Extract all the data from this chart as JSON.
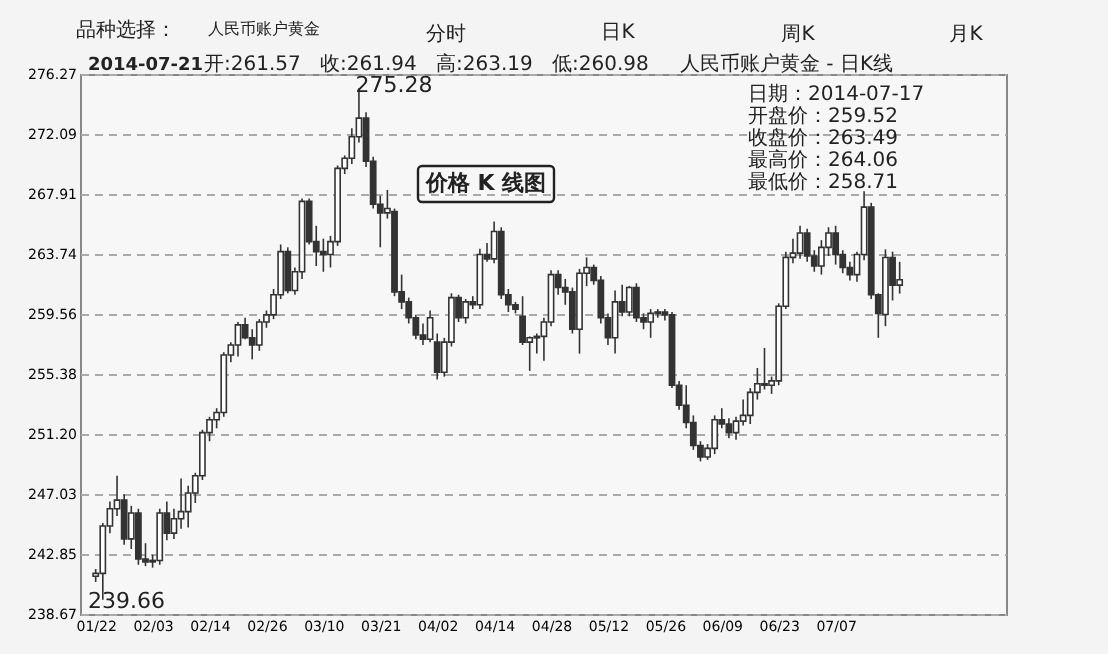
{
  "chart_data": {
    "type": "candlestick",
    "title": "人民币账户黄金 - 日K线",
    "categories": [
      "01/22",
      null,
      null,
      null,
      null,
      null,
      null,
      null,
      "02/03",
      null,
      null,
      null,
      null,
      null,
      null,
      null,
      "02/14",
      null,
      null,
      null,
      null,
      null,
      null,
      null,
      "02/26",
      null,
      null,
      null,
      null,
      null,
      null,
      null,
      "03/10",
      null,
      null,
      null,
      null,
      null,
      null,
      null,
      "03/21",
      null,
      null,
      null,
      null,
      null,
      null,
      null,
      "04/02",
      null,
      null,
      null,
      null,
      null,
      null,
      null,
      "04/14",
      null,
      null,
      null,
      null,
      null,
      null,
      null,
      "04/28",
      null,
      null,
      null,
      null,
      null,
      null,
      null,
      "05/12",
      null,
      null,
      null,
      null,
      null,
      null,
      null,
      "05/26",
      null,
      null,
      null,
      null,
      null,
      null,
      null,
      "06/09",
      null,
      null,
      null,
      null,
      null,
      null,
      null,
      "06/23",
      null,
      null,
      null,
      null,
      null,
      null,
      null,
      "07/07",
      null,
      null,
      null,
      null,
      null,
      null,
      null,
      null,
      null
    ],
    "series": [
      {
        "color": "#333333",
        "ohlc": [
          [
            241.3,
            241.8,
            240.9,
            241.5
          ],
          [
            241.5,
            245.0,
            239.66,
            244.8
          ],
          [
            244.8,
            246.5,
            244.3,
            246.0
          ],
          [
            246.0,
            248.3,
            245.5,
            246.6
          ],
          [
            246.6,
            247.0,
            243.5,
            243.9
          ],
          [
            243.9,
            246.2,
            243.2,
            245.7
          ],
          [
            245.7,
            246.0,
            242.1,
            242.5
          ],
          [
            242.5,
            243.6,
            242.0,
            242.3
          ],
          [
            242.3,
            242.8,
            241.9,
            242.4
          ],
          [
            242.4,
            246.0,
            242.1,
            245.7
          ],
          [
            245.7,
            246.5,
            243.8,
            244.3
          ],
          [
            244.3,
            246.0,
            243.9,
            245.3
          ],
          [
            245.3,
            248.1,
            244.6,
            245.8
          ],
          [
            245.8,
            247.6,
            244.7,
            247.1
          ],
          [
            247.1,
            248.5,
            246.4,
            248.3
          ],
          [
            248.3,
            251.5,
            248.0,
            251.3
          ],
          [
            251.3,
            252.4,
            250.7,
            252.2
          ],
          [
            252.2,
            253.0,
            251.6,
            252.7
          ],
          [
            252.7,
            256.9,
            252.4,
            256.7
          ],
          [
            256.7,
            257.6,
            256.2,
            257.4
          ],
          [
            257.4,
            259.0,
            256.6,
            258.8
          ],
          [
            258.8,
            259.3,
            257.8,
            257.9
          ],
          [
            257.9,
            258.5,
            256.4,
            257.4
          ],
          [
            257.4,
            259.2,
            257.0,
            259.0
          ],
          [
            259.0,
            259.8,
            258.6,
            259.5
          ],
          [
            259.5,
            261.3,
            259.2,
            260.9
          ],
          [
            260.9,
            264.4,
            260.6,
            263.9
          ],
          [
            263.9,
            264.2,
            261.0,
            261.2
          ],
          [
            261.2,
            262.8,
            260.9,
            262.5
          ],
          [
            262.5,
            267.6,
            262.0,
            267.4
          ],
          [
            267.4,
            267.6,
            264.4,
            264.6
          ],
          [
            264.6,
            265.7,
            262.9,
            263.9
          ],
          [
            263.9,
            264.8,
            262.5,
            263.7
          ],
          [
            263.7,
            265.0,
            262.8,
            264.6
          ],
          [
            264.6,
            269.9,
            264.3,
            269.7
          ],
          [
            269.7,
            270.6,
            269.3,
            270.4
          ],
          [
            270.4,
            272.5,
            270.0,
            271.9
          ],
          [
            271.9,
            275.28,
            271.5,
            273.2
          ],
          [
            273.2,
            273.6,
            269.8,
            270.2
          ],
          [
            270.2,
            270.5,
            266.9,
            267.2
          ],
          [
            267.2,
            267.8,
            264.2,
            266.6
          ],
          [
            266.6,
            268.2,
            266.2,
            266.9
          ],
          [
            266.7,
            266.9,
            260.8,
            261.1
          ],
          [
            261.1,
            262.3,
            259.9,
            260.4
          ],
          [
            260.4,
            260.7,
            258.9,
            259.3
          ],
          [
            259.3,
            259.5,
            257.8,
            258.1
          ],
          [
            258.1,
            258.9,
            257.4,
            257.8
          ],
          [
            257.8,
            259.8,
            257.6,
            259.3
          ],
          [
            257.6,
            258.2,
            255.0,
            255.5
          ],
          [
            255.5,
            257.9,
            255.2,
            257.6
          ],
          [
            257.6,
            261.0,
            257.3,
            260.7
          ],
          [
            260.7,
            260.9,
            259.0,
            259.3
          ],
          [
            259.3,
            260.6,
            258.9,
            260.4
          ],
          [
            260.4,
            260.8,
            259.9,
            260.2
          ],
          [
            260.2,
            264.1,
            259.9,
            263.7
          ],
          [
            263.7,
            264.5,
            263.2,
            263.4
          ],
          [
            263.4,
            266.0,
            263.1,
            265.3
          ],
          [
            265.3,
            265.6,
            260.6,
            260.9
          ],
          [
            260.9,
            261.3,
            259.7,
            260.2
          ],
          [
            260.2,
            260.4,
            259.6,
            259.9
          ],
          [
            259.4,
            260.8,
            257.4,
            257.6
          ],
          [
            257.6,
            258.0,
            255.6,
            257.9
          ],
          [
            257.9,
            258.2,
            256.8,
            258.0
          ],
          [
            258.0,
            259.3,
            256.3,
            259.0
          ],
          [
            259.0,
            262.6,
            258.7,
            262.3
          ],
          [
            262.3,
            262.6,
            260.9,
            261.4
          ],
          [
            261.4,
            262.0,
            260.2,
            261.1
          ],
          [
            261.1,
            261.4,
            258.2,
            258.5
          ],
          [
            258.5,
            262.7,
            256.8,
            262.4
          ],
          [
            262.4,
            263.5,
            261.5,
            262.8
          ],
          [
            262.8,
            263.0,
            261.6,
            261.9
          ],
          [
            261.9,
            262.2,
            258.9,
            259.3
          ],
          [
            259.3,
            259.6,
            257.4,
            257.9
          ],
          [
            257.9,
            261.2,
            256.8,
            260.4
          ],
          [
            260.4,
            261.6,
            259.4,
            259.7
          ],
          [
            259.7,
            261.5,
            259.4,
            261.4
          ],
          [
            261.4,
            261.7,
            259.0,
            259.3
          ],
          [
            259.3,
            259.6,
            258.5,
            259.0
          ],
          [
            259.0,
            259.9,
            257.9,
            259.6
          ],
          [
            259.6,
            259.9,
            259.3,
            259.7
          ],
          [
            259.7,
            259.9,
            259.1,
            259.5
          ],
          [
            259.5,
            259.7,
            254.4,
            254.6
          ],
          [
            254.6,
            254.9,
            252.9,
            253.2
          ],
          [
            253.2,
            254.6,
            251.6,
            252.0
          ],
          [
            252.0,
            252.5,
            250.1,
            250.4
          ],
          [
            250.4,
            250.7,
            249.3,
            249.6
          ],
          [
            249.6,
            250.5,
            249.4,
            250.2
          ],
          [
            250.2,
            252.5,
            249.8,
            252.2
          ],
          [
            252.2,
            253.0,
            251.6,
            251.9
          ],
          [
            251.9,
            252.3,
            250.9,
            251.3
          ],
          [
            251.3,
            252.4,
            250.8,
            252.1
          ],
          [
            252.1,
            253.6,
            251.8,
            252.5
          ],
          [
            252.5,
            254.4,
            251.9,
            254.1
          ],
          [
            254.1,
            255.8,
            253.6,
            254.7
          ],
          [
            254.7,
            257.2,
            254.3,
            254.6
          ],
          [
            254.6,
            255.2,
            254.0,
            254.9
          ],
          [
            254.9,
            260.3,
            254.6,
            260.1
          ],
          [
            260.1,
            263.9,
            259.9,
            263.5
          ],
          [
            263.5,
            264.8,
            263.1,
            263.8
          ],
          [
            263.8,
            265.7,
            263.4,
            265.2
          ],
          [
            265.2,
            265.5,
            263.2,
            263.6
          ],
          [
            263.6,
            264.0,
            262.5,
            262.9
          ],
          [
            262.9,
            264.7,
            262.3,
            264.2
          ],
          [
            264.2,
            265.6,
            263.6,
            265.2
          ],
          [
            265.2,
            265.7,
            263.0,
            263.7
          ],
          [
            263.7,
            264.0,
            262.4,
            262.8
          ],
          [
            262.8,
            263.2,
            261.9,
            262.3
          ],
          [
            262.3,
            263.9,
            261.8,
            263.7
          ],
          [
            263.7,
            268.1,
            263.3,
            267.0
          ],
          [
            267.0,
            267.3,
            260.6,
            260.9
          ],
          [
            260.9,
            261.0,
            257.9,
            259.6
          ],
          [
            259.52,
            264.06,
            258.71,
            263.49
          ],
          [
            263.49,
            263.9,
            260.5,
            261.57
          ],
          [
            261.57,
            263.19,
            260.98,
            261.94
          ]
        ]
      }
    ],
    "ylim": [
      238.67,
      276.27
    ],
    "yticks": [
      238.67,
      242.85,
      247.03,
      {
        "value": 251.2,
        "label": "251.20"
      },
      255.38,
      259.56,
      263.74,
      267.91,
      272.09,
      276.27
    ],
    "grid": "y",
    "annotations": [
      "品种选择：",
      "人民币账户黄金",
      "分时",
      "日K",
      "周K",
      "月K",
      "2014-07-21",
      "开:261.57",
      "收:261.94",
      "高:263.19",
      "低:260.98",
      "日期：2014-07-17",
      "开盘价：259.52",
      "收盘价：263.49",
      "最高价：264.06",
      "最低价：258.71",
      "价格 K 线图",
      "275.28",
      "239.66"
    ]
  }
}
